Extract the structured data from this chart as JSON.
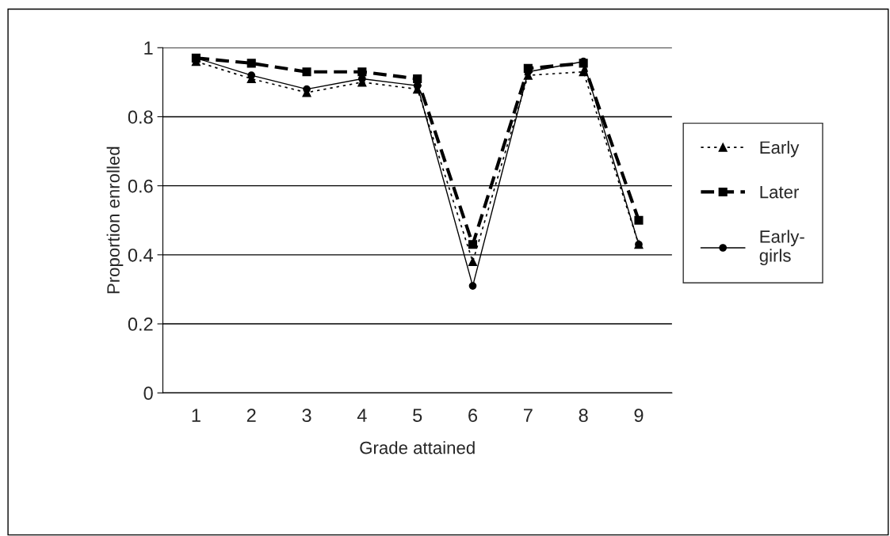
{
  "chart_data": {
    "type": "line",
    "xlabel": "Grade attained",
    "ylabel": "Proportion enrolled",
    "categories": [
      "1",
      "2",
      "3",
      "4",
      "5",
      "6",
      "7",
      "8",
      "9"
    ],
    "series": [
      {
        "name": "Early",
        "color": "#000000",
        "marker": "triangle",
        "line_style": "dotted",
        "values": [
          0.96,
          0.91,
          0.87,
          0.9,
          0.88,
          0.38,
          0.92,
          0.93,
          0.43
        ]
      },
      {
        "name": "Later",
        "color": "#000000",
        "marker": "square",
        "line_style": "dashed",
        "values": [
          0.97,
          0.955,
          0.93,
          0.93,
          0.91,
          0.43,
          0.94,
          0.955,
          0.5
        ]
      },
      {
        "name": "Early-\ngirls",
        "color": "#000000",
        "marker": "circle",
        "line_style": "solid",
        "values": [
          0.97,
          0.92,
          0.88,
          0.91,
          0.89,
          0.31,
          0.93,
          0.96,
          0.43
        ]
      }
    ],
    "ylim": [
      0,
      1
    ],
    "yticks": [
      0,
      0.2,
      0.4,
      0.6,
      0.8,
      1
    ],
    "grid": "y",
    "legend": "right"
  }
}
